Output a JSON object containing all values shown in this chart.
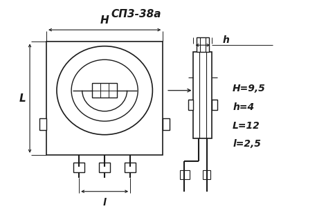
{
  "title": "СП3-38а",
  "bg_color": "#ffffff",
  "line_color": "#1a1a1a",
  "dim_H": "H=9,5",
  "dim_h": "h=4",
  "dim_L": "L=12",
  "dim_l": "l=2,5",
  "label_H": "H",
  "label_h": "h",
  "label_L": "L",
  "label_l": "l"
}
